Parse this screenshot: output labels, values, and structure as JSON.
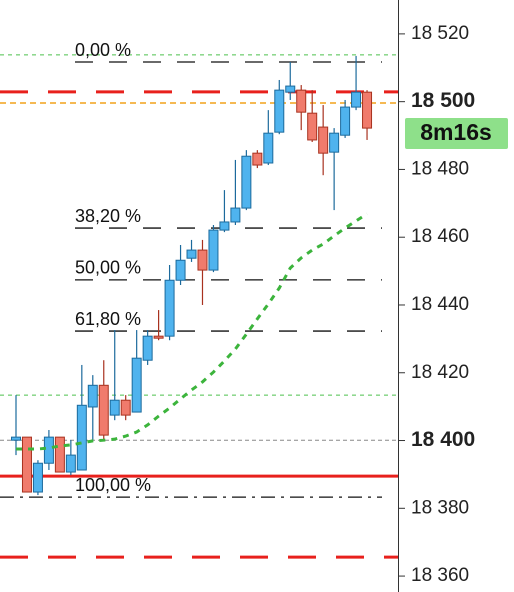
{
  "chart_data": {
    "type": "candlestick",
    "ylim": [
      18355.3,
      18530
    ],
    "yticks": [
      {
        "value": 18520,
        "label": "18 520"
      },
      {
        "value": 18500,
        "label": "18 500",
        "bold": true
      },
      {
        "value": 18480,
        "label": "18 480"
      },
      {
        "value": 18460,
        "label": "18 460"
      },
      {
        "value": 18440,
        "label": "18 440"
      },
      {
        "value": 18420,
        "label": "18 420"
      },
      {
        "value": 18400,
        "label": "18 400",
        "bold": true
      },
      {
        "value": 18380,
        "label": "18 380"
      },
      {
        "value": 18360,
        "label": "18 360"
      }
    ],
    "up_color": "#4fb3ee",
    "down_color": "#f07b6c",
    "open": [
      18400.1,
      18401.0,
      18384.8,
      18393.3,
      18401.0,
      18390.7,
      18391.3,
      18409.9,
      18416.3,
      18407.5,
      18411.9,
      18408.4,
      18423.7,
      18430.8,
      18430.8,
      18447.3,
      18453.8,
      18456.2,
      18450.3,
      18462.1,
      18464.5,
      18468.6,
      18484.8,
      18481.9,
      18491.0,
      18502.8,
      18503.4,
      18496.6,
      18492.5,
      18485.1,
      18490.1,
      18498.4,
      18502.8
    ],
    "high": [
      18413.4,
      18401.0,
      18394.2,
      18403.1,
      18401.0,
      18400.1,
      18422.3,
      18419.3,
      18423.7,
      18432.6,
      18413.4,
      18432.6,
      18432.6,
      18438.5,
      18451.8,
      18457.7,
      18459.2,
      18459.2,
      18463.6,
      18473.9,
      18482.8,
      18485.7,
      18485.7,
      18497.5,
      18506.4,
      18511.7,
      18504.9,
      18503.4,
      18499.0,
      18492.2,
      18500.5,
      18513.5,
      18503.4
    ],
    "low": [
      18395.7,
      18384.8,
      18383.9,
      18391.3,
      18390.7,
      18389.8,
      18391.3,
      18400.1,
      18400.1,
      18406.0,
      18406.0,
      18408.4,
      18422.3,
      18429.6,
      18429.6,
      18445.9,
      18452.7,
      18440.0,
      18449.7,
      18461.5,
      18463.6,
      18468.0,
      18480.4,
      18481.3,
      18490.4,
      18500.5,
      18491.6,
      18488.1,
      18478.3,
      18468.0,
      18489.3,
      18497.5,
      18488.7
    ],
    "close": [
      18401.0,
      18384.8,
      18393.3,
      18401.0,
      18390.7,
      18395.7,
      18410.4,
      18416.3,
      18401.6,
      18411.9,
      18407.5,
      18424.3,
      18430.8,
      18430.2,
      18447.3,
      18453.2,
      18456.2,
      18450.3,
      18462.1,
      18464.5,
      18468.6,
      18483.9,
      18481.3,
      18490.7,
      18503.4,
      18504.6,
      18496.9,
      18488.7,
      18484.8,
      18490.7,
      18498.4,
      18502.8,
      18492.2
    ],
    "moving_average": {
      "color": "#3cb43c",
      "values": [
        18397.5,
        18397.5,
        18397.5,
        18397.8,
        18398.4,
        18398.7,
        18399.3,
        18399.9,
        18400.1,
        18400.4,
        18401.3,
        18402.5,
        18404.6,
        18407.2,
        18409.6,
        18412.3,
        18414.9,
        18417.3,
        18420.2,
        18423.5,
        18427.0,
        18431.4,
        18435.9,
        18440.3,
        18445.0,
        18450.9,
        18453.9,
        18456.2,
        18458.0,
        18460.4,
        18462.7,
        18464.8,
        18466.9
      ]
    },
    "fibonacci": [
      {
        "label": "0,00 %",
        "value": 18511.7
      },
      {
        "label": "38,20 %",
        "value": 18462.7
      },
      {
        "label": "50,00 %",
        "value": 18447.4
      },
      {
        "label": "61,80 %",
        "value": 18432.3
      },
      {
        "label": "100,00 %",
        "value": 18383.3
      }
    ],
    "lines": [
      {
        "value": 18513.8,
        "color": "#4cc04c",
        "dash": "4,4",
        "width": 1
      },
      {
        "value": 18502.9,
        "color": "#e8201c",
        "dash": "28,20",
        "width": 3
      },
      {
        "value": 18499.6,
        "color": "#f2a21a",
        "dash": "6,4",
        "width": 1.5
      },
      {
        "value": 18413.4,
        "color": "#4cc04c",
        "dash": "4,4",
        "width": 1
      },
      {
        "value": 18400.1,
        "color": "#888888",
        "dash": "4,3",
        "width": 1
      },
      {
        "value": 18389.5,
        "color": "#e8201c",
        "dash": "none",
        "width": 3
      },
      {
        "value": 18365.6,
        "color": "#e8201c",
        "dash": "28,20",
        "width": 3
      }
    ],
    "countdown": {
      "text": "8m16s",
      "color": "#8ee08a"
    }
  }
}
